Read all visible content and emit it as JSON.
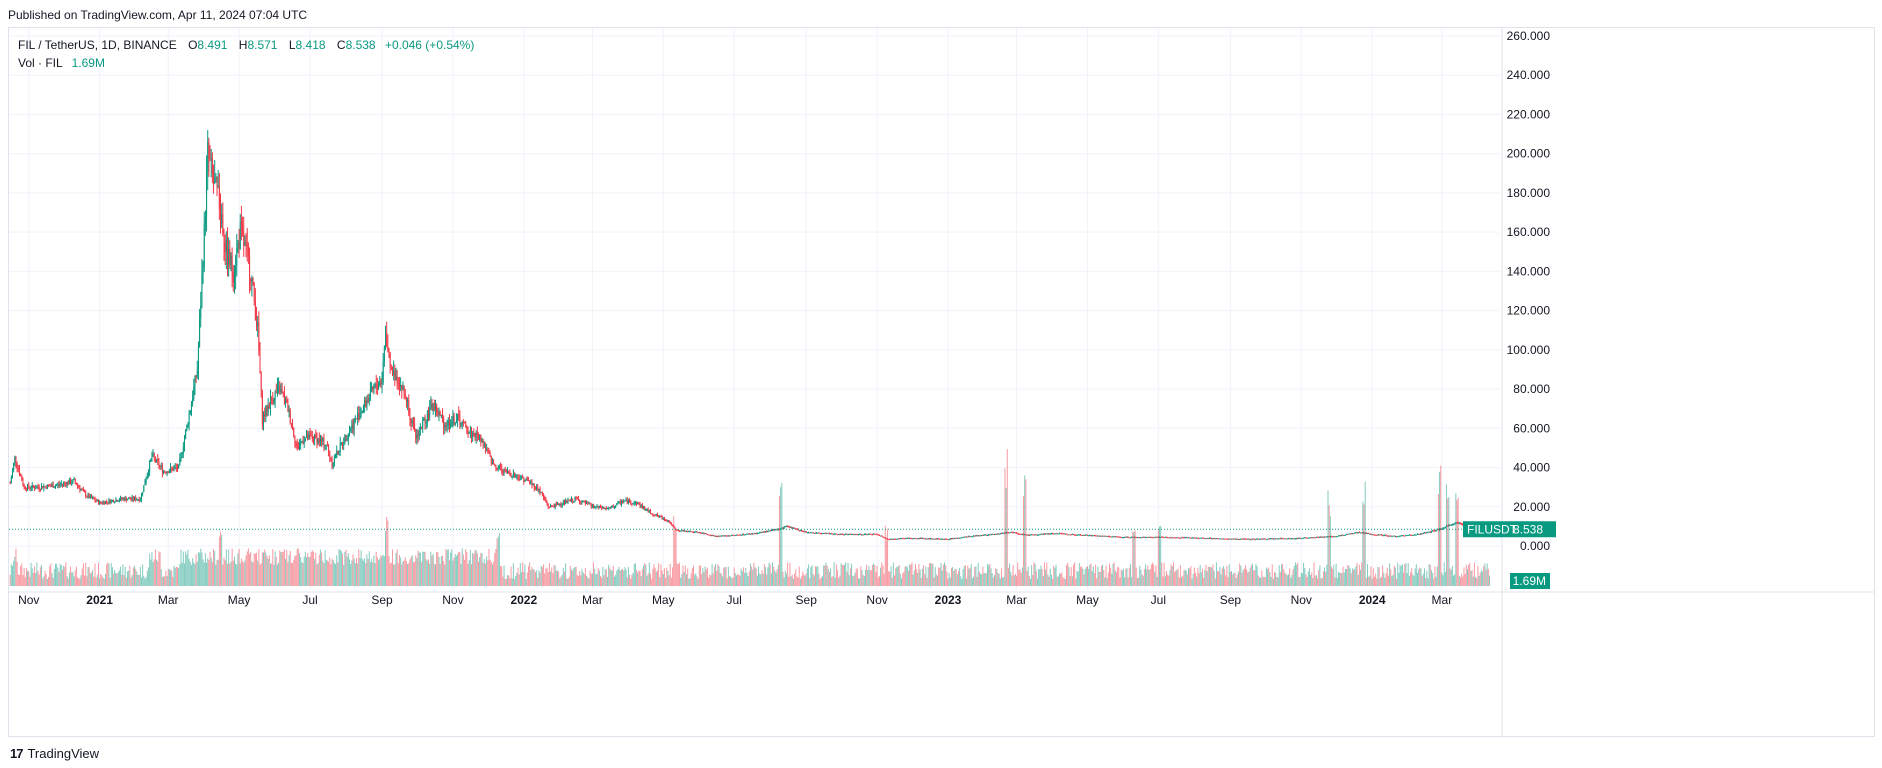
{
  "header": {
    "published": "Published on TradingView.com, Apr 11, 2024 07:04 UTC"
  },
  "legend": {
    "symbol": "FIL / TetherUS, 1D, BINANCE",
    "open_label": "O",
    "open": "8.491",
    "high_label": "H",
    "high": "8.571",
    "low_label": "L",
    "low": "8.418",
    "close_label": "C",
    "close": "8.538",
    "change": "+0.046 (+0.54%)",
    "volume_label": "Vol · FIL",
    "volume": "1.69M"
  },
  "footer": {
    "logo": "17",
    "brand": "TradingView"
  },
  "colors": {
    "up": "#089981",
    "down": "#f23645",
    "grid": "#f0f3fa",
    "text": "#131722",
    "border": "#e0e3eb"
  },
  "chart_data": {
    "type": "candlestick",
    "symbol": "FILUSDT",
    "interval": "1D",
    "exchange": "BINANCE",
    "y_axis": {
      "ticks": [
        "260.000",
        "240.000",
        "220.000",
        "200.000",
        "180.000",
        "160.000",
        "140.000",
        "120.000",
        "100.000",
        "80.000",
        "60.000",
        "40.000",
        "20.000",
        "0.000"
      ],
      "ylim": [
        0,
        260
      ]
    },
    "x_axis": {
      "ticks": [
        {
          "label": "Nov",
          "date": "2020-11-01"
        },
        {
          "label": "2021",
          "date": "2021-01-01"
        },
        {
          "label": "Mar",
          "date": "2021-03-01"
        },
        {
          "label": "May",
          "date": "2021-05-01"
        },
        {
          "label": "Jul",
          "date": "2021-07-01"
        },
        {
          "label": "Sep",
          "date": "2021-09-01"
        },
        {
          "label": "Nov",
          "date": "2021-11-01"
        },
        {
          "label": "2022",
          "date": "2022-01-01"
        },
        {
          "label": "Mar",
          "date": "2022-03-01"
        },
        {
          "label": "May",
          "date": "2022-05-01"
        },
        {
          "label": "Jul",
          "date": "2022-07-01"
        },
        {
          "label": "Sep",
          "date": "2022-09-01"
        },
        {
          "label": "Nov",
          "date": "2022-11-01"
        },
        {
          "label": "2023",
          "date": "2023-01-01"
        },
        {
          "label": "Mar",
          "date": "2023-03-01"
        },
        {
          "label": "May",
          "date": "2023-05-01"
        },
        {
          "label": "Jul",
          "date": "2023-07-01"
        },
        {
          "label": "Sep",
          "date": "2023-09-01"
        },
        {
          "label": "Nov",
          "date": "2023-11-01"
        },
        {
          "label": "2024",
          "date": "2024-01-01"
        },
        {
          "label": "Mar",
          "date": "2024-03-01"
        }
      ]
    },
    "price_series": [
      [
        "2020-10-16",
        32
      ],
      [
        "2020-10-20",
        45
      ],
      [
        "2020-10-28",
        30
      ],
      [
        "2020-11-10",
        30
      ],
      [
        "2020-11-25",
        31
      ],
      [
        "2020-12-10",
        33
      ],
      [
        "2020-12-20",
        26
      ],
      [
        "2021-01-01",
        22
      ],
      [
        "2021-01-20",
        24
      ],
      [
        "2021-02-05",
        24
      ],
      [
        "2021-02-15",
        46
      ],
      [
        "2021-02-25",
        38
      ],
      [
        "2021-03-10",
        40
      ],
      [
        "2021-03-20",
        70
      ],
      [
        "2021-03-26",
        90
      ],
      [
        "2021-04-01",
        160
      ],
      [
        "2021-04-04",
        200
      ],
      [
        "2021-04-09",
        185
      ],
      [
        "2021-04-14",
        175
      ],
      [
        "2021-04-20",
        150
      ],
      [
        "2021-04-26",
        140
      ],
      [
        "2021-05-02",
        160
      ],
      [
        "2021-05-07",
        150
      ],
      [
        "2021-05-11",
        140
      ],
      [
        "2021-05-17",
        110
      ],
      [
        "2021-05-21",
        65
      ],
      [
        "2021-05-29",
        75
      ],
      [
        "2021-06-05",
        80
      ],
      [
        "2021-06-12",
        70
      ],
      [
        "2021-06-20",
        50
      ],
      [
        "2021-06-26",
        55
      ],
      [
        "2021-07-05",
        55
      ],
      [
        "2021-07-15",
        52
      ],
      [
        "2021-07-20",
        42
      ],
      [
        "2021-07-28",
        52
      ],
      [
        "2021-08-05",
        60
      ],
      [
        "2021-08-15",
        70
      ],
      [
        "2021-08-25",
        80
      ],
      [
        "2021-09-01",
        85
      ],
      [
        "2021-09-04",
        110
      ],
      [
        "2021-09-08",
        90
      ],
      [
        "2021-09-15",
        85
      ],
      [
        "2021-09-22",
        75
      ],
      [
        "2021-09-30",
        55
      ],
      [
        "2021-10-08",
        65
      ],
      [
        "2021-10-15",
        72
      ],
      [
        "2021-10-25",
        62
      ],
      [
        "2021-11-05",
        65
      ],
      [
        "2021-11-15",
        58
      ],
      [
        "2021-11-25",
        55
      ],
      [
        "2021-12-05",
        42
      ],
      [
        "2021-12-15",
        38
      ],
      [
        "2021-12-25",
        36
      ],
      [
        "2022-01-05",
        33
      ],
      [
        "2022-01-15",
        28
      ],
      [
        "2022-01-22",
        20
      ],
      [
        "2022-02-05",
        22
      ],
      [
        "2022-02-15",
        24
      ],
      [
        "2022-03-01",
        20
      ],
      [
        "2022-03-15",
        19
      ],
      [
        "2022-03-28",
        23
      ],
      [
        "2022-04-08",
        22
      ],
      [
        "2022-04-20",
        17
      ],
      [
        "2022-05-05",
        13
      ],
      [
        "2022-05-12",
        8
      ],
      [
        "2022-06-01",
        7
      ],
      [
        "2022-06-15",
        5
      ],
      [
        "2022-07-01",
        5.5
      ],
      [
        "2022-07-20",
        6.5
      ],
      [
        "2022-08-08",
        8.5
      ],
      [
        "2022-08-15",
        10
      ],
      [
        "2022-09-01",
        7
      ],
      [
        "2022-10-01",
        6
      ],
      [
        "2022-11-01",
        6
      ],
      [
        "2022-11-10",
        3.5
      ],
      [
        "2022-12-01",
        4
      ],
      [
        "2023-01-01",
        3.5
      ],
      [
        "2023-01-20",
        5
      ],
      [
        "2023-02-10",
        6
      ],
      [
        "2023-02-25",
        7
      ],
      [
        "2023-03-10",
        5.5
      ],
      [
        "2023-04-01",
        6.5
      ],
      [
        "2023-05-01",
        5.5
      ],
      [
        "2023-06-01",
        4.5
      ],
      [
        "2023-07-01",
        4.5
      ],
      [
        "2023-08-01",
        4.2
      ],
      [
        "2023-09-01",
        3.6
      ],
      [
        "2023-10-01",
        3.6
      ],
      [
        "2023-11-01",
        4
      ],
      [
        "2023-12-01",
        5
      ],
      [
        "2023-12-20",
        7
      ],
      [
        "2024-01-01",
        6
      ],
      [
        "2024-01-20",
        5
      ],
      [
        "2024-02-10",
        6
      ],
      [
        "2024-02-25",
        8
      ],
      [
        "2024-03-05",
        10
      ],
      [
        "2024-03-14",
        12
      ],
      [
        "2024-03-25",
        9
      ],
      [
        "2024-04-05",
        8.5
      ],
      [
        "2024-04-11",
        8.538
      ]
    ],
    "last_price": {
      "label": "FILUSDT",
      "value": 8.538
    },
    "last_volume": {
      "value": "1.69M"
    },
    "volume_spikes": [
      [
        "2021-04-15",
        0.45
      ],
      [
        "2021-09-05",
        0.5
      ],
      [
        "2021-12-10",
        0.4
      ],
      [
        "2022-05-11",
        0.55
      ],
      [
        "2022-08-10",
        0.8
      ],
      [
        "2022-11-09",
        0.45
      ],
      [
        "2023-02-20",
        1.0
      ],
      [
        "2023-03-08",
        0.85
      ],
      [
        "2023-06-10",
        0.45
      ],
      [
        "2023-07-02",
        0.55
      ],
      [
        "2023-11-25",
        0.7
      ],
      [
        "2023-12-25",
        0.75
      ],
      [
        "2024-02-28",
        0.9
      ],
      [
        "2024-03-06",
        0.8
      ],
      [
        "2024-03-14",
        0.85
      ]
    ]
  }
}
